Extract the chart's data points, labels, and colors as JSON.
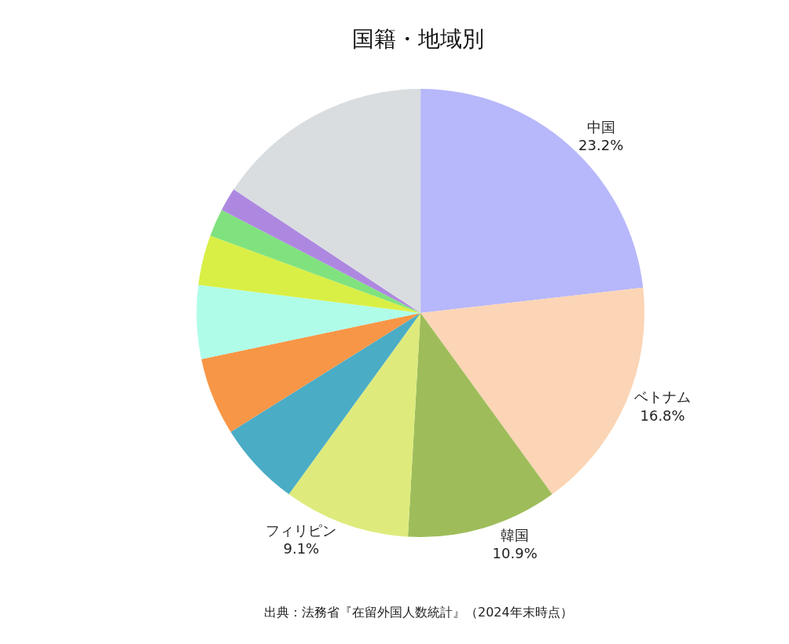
{
  "chart_data": {
    "type": "pie",
    "title": "国籍・地域別",
    "categories": [
      "中国",
      "ベトナム",
      "韓国",
      "フィリピン",
      null,
      null,
      null,
      null,
      null,
      null,
      null
    ],
    "values": [
      23.2,
      16.8,
      10.9,
      9.1,
      6.1,
      5.6,
      5.3,
      3.6,
      2.0,
      1.7,
      15.7
    ],
    "value_labels": [
      "23.2%",
      "16.8%",
      "10.9%",
      "9.1%",
      null,
      null,
      null,
      null,
      null,
      null,
      null
    ],
    "colors": [
      "#b7b7fb",
      "#fbd5b5",
      "#9ebd5a",
      "#deeb7c",
      "#4bacc6",
      "#f79646",
      "#affde8",
      "#d9ef45",
      "#80e27e",
      "#ae88e0",
      "#d9dde0"
    ],
    "annotations": [
      "出典：法務省『在留外国人数統計』（2024年末時点）"
    ]
  }
}
